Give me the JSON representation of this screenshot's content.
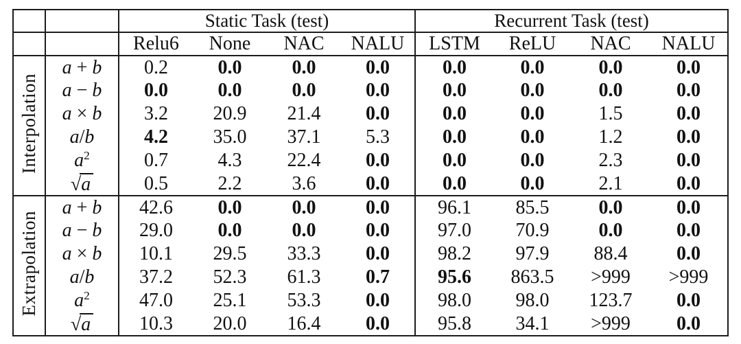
{
  "colors": {
    "background": "#ffffff",
    "text": "#111111",
    "border": "#1c1c1c"
  },
  "table": {
    "col_groups": [
      {
        "label": "Static Task (test)",
        "columns": [
          "Relu6",
          "None",
          "NAC",
          "NALU"
        ]
      },
      {
        "label": "Recurrent Task (test)",
        "columns": [
          "LSTM",
          "ReLU",
          "NAC",
          "NALU"
        ]
      }
    ],
    "row_groups": [
      {
        "label": "Interpolation",
        "rows": [
          {
            "op": "a + b",
            "values": [
              "0.2",
              "0.0",
              "0.0",
              "0.0",
              "0.0",
              "0.0",
              "0.0",
              "0.0"
            ],
            "bold": [
              0,
              1,
              1,
              1,
              1,
              1,
              1,
              1
            ]
          },
          {
            "op": "a − b",
            "values": [
              "0.0",
              "0.0",
              "0.0",
              "0.0",
              "0.0",
              "0.0",
              "0.0",
              "0.0"
            ],
            "bold": [
              1,
              1,
              1,
              1,
              1,
              1,
              1,
              1
            ]
          },
          {
            "op": "a × b",
            "values": [
              "3.2",
              "20.9",
              "21.4",
              "0.0",
              "0.0",
              "0.0",
              "1.5",
              "0.0"
            ],
            "bold": [
              0,
              0,
              0,
              1,
              1,
              1,
              0,
              1
            ]
          },
          {
            "op": "a/b",
            "values": [
              "4.2",
              "35.0",
              "37.1",
              "5.3",
              "0.0",
              "0.0",
              "1.2",
              "0.0"
            ],
            "bold": [
              1,
              0,
              0,
              0,
              1,
              1,
              0,
              1
            ]
          },
          {
            "op": "a^2",
            "values": [
              "0.7",
              "4.3",
              "22.4",
              "0.0",
              "0.0",
              "0.0",
              "2.3",
              "0.0"
            ],
            "bold": [
              0,
              0,
              0,
              1,
              1,
              1,
              0,
              1
            ]
          },
          {
            "op": "√a",
            "values": [
              "0.5",
              "2.2",
              "3.6",
              "0.0",
              "0.0",
              "0.0",
              "2.1",
              "0.0"
            ],
            "bold": [
              0,
              0,
              0,
              1,
              1,
              1,
              0,
              1
            ]
          }
        ]
      },
      {
        "label": "Extrapolation",
        "rows": [
          {
            "op": "a + b",
            "values": [
              "42.6",
              "0.0",
              "0.0",
              "0.0",
              "96.1",
              "85.5",
              "0.0",
              "0.0"
            ],
            "bold": [
              0,
              1,
              1,
              1,
              0,
              0,
              1,
              1
            ]
          },
          {
            "op": "a − b",
            "values": [
              "29.0",
              "0.0",
              "0.0",
              "0.0",
              "97.0",
              "70.9",
              "0.0",
              "0.0"
            ],
            "bold": [
              0,
              1,
              1,
              1,
              0,
              0,
              1,
              1
            ]
          },
          {
            "op": "a × b",
            "values": [
              "10.1",
              "29.5",
              "33.3",
              "0.0",
              "98.2",
              "97.9",
              "88.4",
              "0.0"
            ],
            "bold": [
              0,
              0,
              0,
              1,
              0,
              0,
              0,
              1
            ]
          },
          {
            "op": "a/b",
            "values": [
              "37.2",
              "52.3",
              "61.3",
              "0.7",
              "95.6",
              "863.5",
              ">999",
              ">999"
            ],
            "bold": [
              0,
              0,
              0,
              1,
              1,
              0,
              0,
              0
            ]
          },
          {
            "op": "a^2",
            "values": [
              "47.0",
              "25.1",
              "53.3",
              "0.0",
              "98.0",
              "98.0",
              "123.7",
              "0.0"
            ],
            "bold": [
              0,
              0,
              0,
              1,
              0,
              0,
              0,
              1
            ]
          },
          {
            "op": "√a",
            "values": [
              "10.3",
              "20.0",
              "16.4",
              "0.0",
              "95.8",
              "34.1",
              ">999",
              "0.0"
            ],
            "bold": [
              0,
              0,
              0,
              1,
              0,
              0,
              0,
              1
            ]
          }
        ]
      }
    ]
  }
}
